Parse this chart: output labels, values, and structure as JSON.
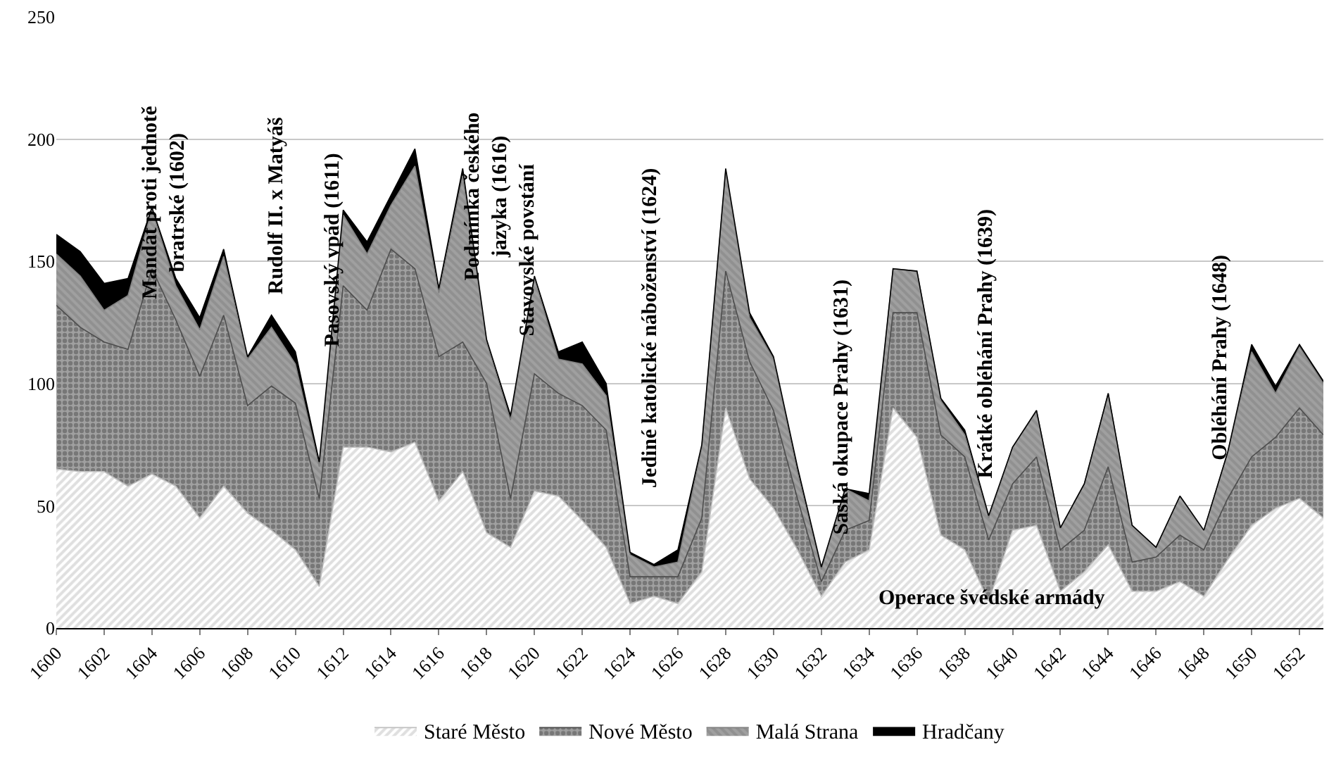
{
  "chart_data": {
    "type": "area",
    "stacked": true,
    "x": [
      1600,
      1601,
      1602,
      1603,
      1604,
      1605,
      1606,
      1607,
      1608,
      1609,
      1610,
      1611,
      1612,
      1613,
      1614,
      1615,
      1616,
      1617,
      1618,
      1619,
      1620,
      1621,
      1622,
      1623,
      1624,
      1625,
      1626,
      1627,
      1628,
      1629,
      1630,
      1631,
      1632,
      1633,
      1634,
      1635,
      1636,
      1637,
      1638,
      1639,
      1640,
      1641,
      1642,
      1643,
      1644,
      1645,
      1646,
      1647,
      1648,
      1649,
      1650,
      1651,
      1652,
      1653
    ],
    "series": [
      {
        "name": "Staré Město",
        "color": "#bfbfbf",
        "values": [
          65,
          64,
          64,
          58,
          63,
          58,
          45,
          58,
          47,
          40,
          32,
          17,
          74,
          74,
          72,
          76,
          52,
          64,
          39,
          33,
          56,
          54,
          44,
          33,
          10,
          13,
          10,
          23,
          90,
          61,
          49,
          32,
          13,
          27,
          32,
          90,
          78,
          38,
          32,
          11,
          40,
          42,
          15,
          23,
          34,
          15,
          15,
          19,
          13,
          28,
          42,
          49,
          53,
          45
        ]
      },
      {
        "name": "Nové Město",
        "color": "#4d4d4d",
        "values": [
          67,
          59,
          53,
          56,
          84,
          68,
          58,
          70,
          44,
          59,
          60,
          36,
          66,
          56,
          83,
          71,
          59,
          53,
          61,
          20,
          48,
          42,
          47,
          48,
          11,
          8,
          11,
          22,
          56,
          48,
          40,
          21,
          6,
          13,
          12,
          39,
          51,
          41,
          38,
          25,
          19,
          28,
          17,
          17,
          32,
          12,
          14,
          19,
          19,
          25,
          28,
          29,
          37,
          34
        ]
      },
      {
        "name": "Malá Strana",
        "color": "#808080",
        "values": [
          21,
          21,
          13,
          22,
          24,
          14,
          19,
          24,
          19,
          24,
          16,
          13,
          29,
          23,
          18,
          42,
          26,
          68,
          17,
          32,
          39,
          14,
          17,
          14,
          9,
          4,
          6,
          29,
          41,
          18,
          21,
          11,
          5,
          17,
          8,
          18,
          17,
          14,
          9,
          9,
          15,
          19,
          9,
          19,
          30,
          15,
          4,
          16,
          8,
          19,
          43,
          18,
          25,
          21
        ]
      },
      {
        "name": "Hradčany",
        "color": "#000000",
        "values": [
          8,
          10,
          11,
          7,
          1,
          3,
          5,
          3,
          1,
          5,
          5,
          2,
          2,
          5,
          4,
          7,
          2,
          3,
          1,
          2,
          1,
          3,
          9,
          5,
          1,
          1,
          5,
          1,
          1,
          2,
          1,
          2,
          1,
          0,
          3,
          0,
          0,
          1,
          2,
          1,
          0,
          0,
          0,
          0,
          0,
          0,
          0,
          0,
          0,
          0,
          3,
          3,
          1,
          1
        ]
      }
    ],
    "xlim": [
      1600,
      1653
    ],
    "xticks": [
      1600,
      1602,
      1604,
      1606,
      1608,
      1610,
      1612,
      1614,
      1616,
      1618,
      1620,
      1622,
      1624,
      1626,
      1628,
      1630,
      1632,
      1634,
      1636,
      1638,
      1640,
      1642,
      1644,
      1646,
      1648,
      1650,
      1652
    ],
    "ylim": [
      0,
      250
    ],
    "yticks": [
      0,
      50,
      100,
      150,
      200,
      250
    ],
    "grid": "y",
    "legend": "bottom",
    "annotations": [
      "Mandát proti jednotě\nbratrské (1602)",
      "Rudolf II. x Matyáš",
      "Pasovský vpád (1611)",
      "Podmínka českého\njazyka (1616)",
      "Stavovské povstání",
      "Jediné katolické náboženství (1624)",
      "Saská okupace Prahy (1631)",
      "Krátké obléhání Prahy (1639)",
      "Obléhání Prahy (1648)",
      "Operace švédské armády"
    ]
  }
}
